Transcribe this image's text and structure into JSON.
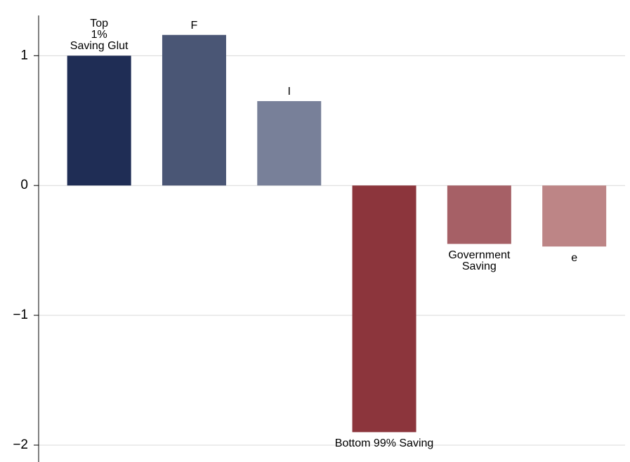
{
  "chart_data": {
    "type": "bar",
    "categories": [
      "Top\n1%\nSaving Glut",
      "F",
      "I",
      "Bottom 99% Saving",
      "Government\nSaving",
      "e"
    ],
    "values": [
      1.0,
      1.16,
      0.65,
      -1.9,
      -0.45,
      -0.47
    ],
    "colors": [
      "#1f2d55",
      "#4a5675",
      "#788099",
      "#8c353c",
      "#a66066",
      "#bd8586"
    ],
    "ylim": [
      -2.13,
      1.31
    ],
    "yticks": [
      {
        "value": -2,
        "label": "−2"
      },
      {
        "value": -1,
        "label": "−1"
      },
      0,
      1
    ],
    "grid": true
  }
}
